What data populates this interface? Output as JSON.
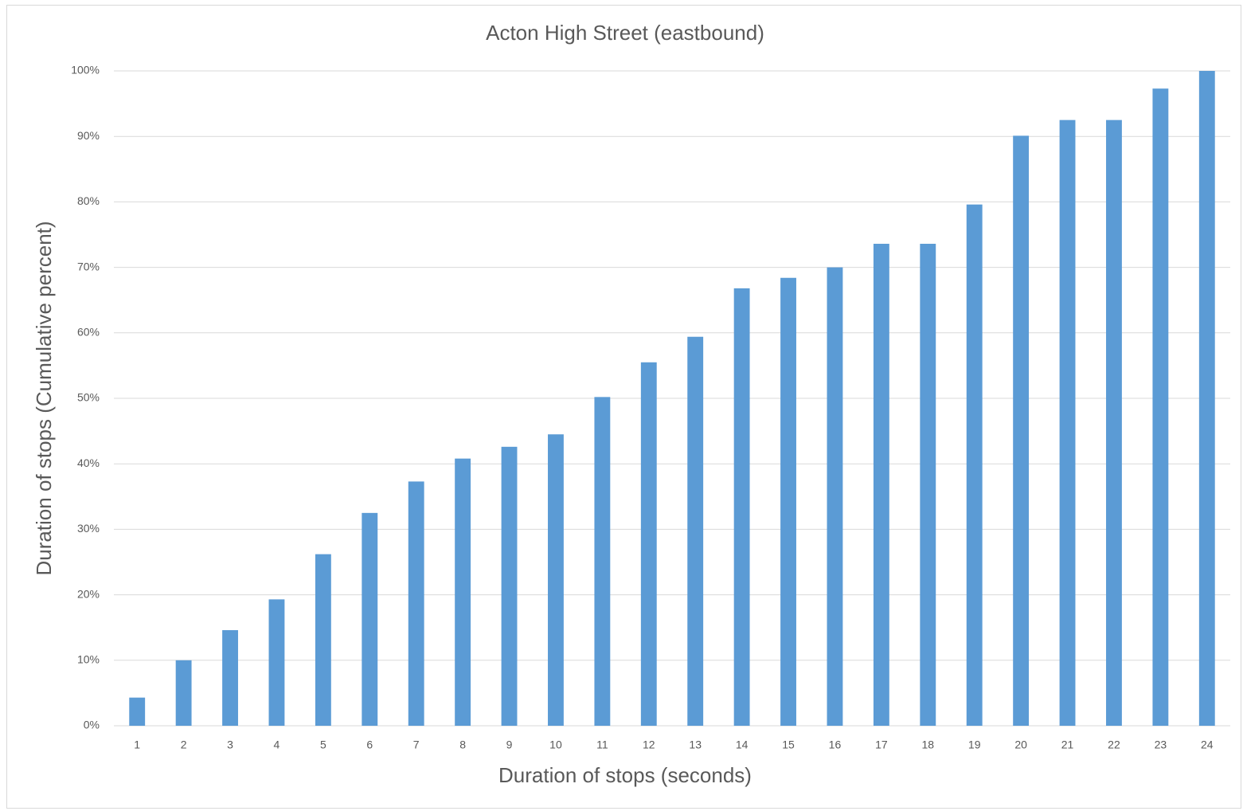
{
  "chart_data": {
    "type": "bar",
    "title": "Acton High Street (eastbound)",
    "x_label": "Duration of stops (seconds)",
    "y_label": "Duration of stops (Cumulative percent)",
    "categories": [
      "1",
      "2",
      "3",
      "4",
      "5",
      "6",
      "7",
      "8",
      "9",
      "10",
      "11",
      "12",
      "13",
      "14",
      "15",
      "16",
      "17",
      "18",
      "19",
      "20",
      "21",
      "22",
      "23",
      "24"
    ],
    "values": [
      4.3,
      10.0,
      14.6,
      19.3,
      26.2,
      32.5,
      37.3,
      40.8,
      42.6,
      44.5,
      50.2,
      55.5,
      59.4,
      66.8,
      68.4,
      70.0,
      73.6,
      73.6,
      79.6,
      90.1,
      92.5,
      92.5,
      97.3,
      100
    ],
    "color": "#5b9bd5",
    "ylim": [
      0,
      100
    ],
    "yticks": [
      {
        "value": 0,
        "label": "0%"
      },
      {
        "value": 10,
        "label": "10%"
      },
      {
        "value": 20,
        "label": "20%"
      },
      {
        "value": 30,
        "label": "30%"
      },
      {
        "value": 40,
        "label": "40%"
      },
      {
        "value": 50,
        "label": "50%"
      },
      {
        "value": 60,
        "label": "60%"
      },
      {
        "value": 70,
        "label": "70%"
      },
      {
        "value": 80,
        "label": "80%"
      },
      {
        "value": 90,
        "label": "90%"
      },
      {
        "value": 100,
        "label": "100%"
      }
    ],
    "grid": true
  }
}
